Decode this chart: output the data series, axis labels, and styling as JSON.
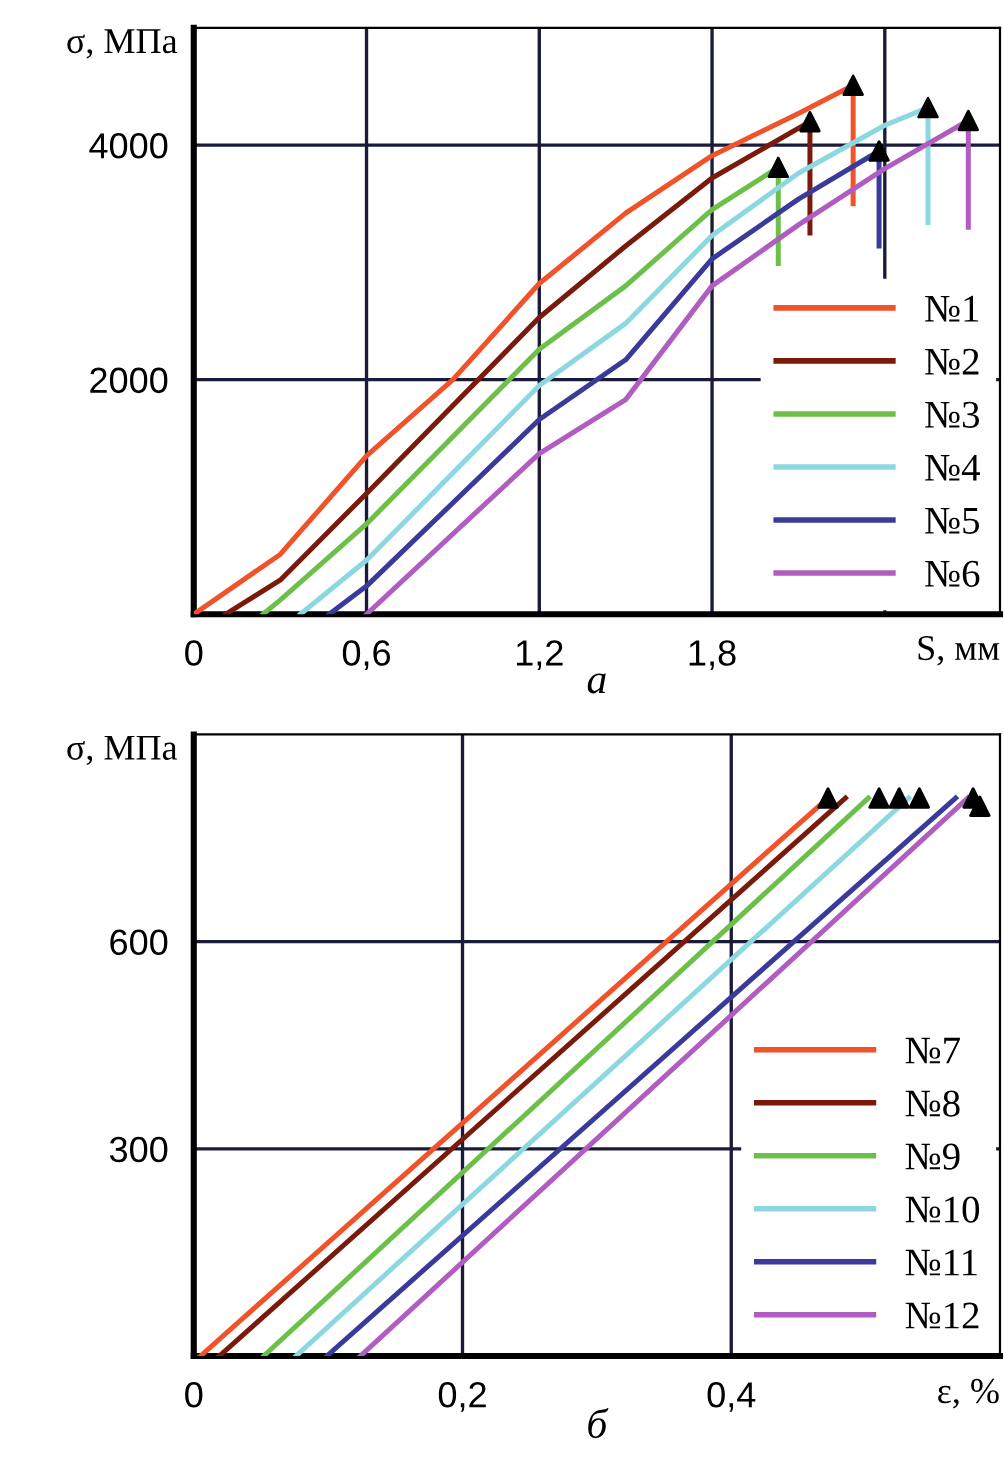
{
  "chart_data": [
    {
      "type": "line",
      "xlabel": "S, мм",
      "ylabel": "σ, МПа",
      "annotations": [
        "а"
      ],
      "xlim": [
        0,
        2.8
      ],
      "ylim": [
        0,
        5000
      ],
      "xticks": [
        0,
        {
          "value": 0.6,
          "label": "0,6"
        },
        {
          "value": 1.2,
          "label": "1,2"
        },
        {
          "value": 1.8,
          "label": "1,8"
        },
        {
          "value": 2.4,
          "label": null
        }
      ],
      "yticks": [
        {
          "value": 0,
          "label": null
        },
        2000,
        4000
      ],
      "grid": true,
      "legend": "bottom right",
      "line_style": "solid",
      "series": [
        {
          "name": "№1",
          "color": "#f0522a",
          "marker": "none",
          "x": [
            0,
            0.3,
            0.6,
            0.9,
            1.2,
            1.5,
            1.8,
            2.1,
            2.29,
            2.29
          ],
          "values": [
            0,
            510,
            1350,
            2000,
            2820,
            3420,
            3910,
            4270,
            4510,
            3500
          ]
        },
        {
          "name": "№2",
          "color": "#7a1a0a",
          "marker": "none",
          "x": [
            0.11,
            0.3,
            0.6,
            1.2,
            1.5,
            1.8,
            2.14,
            2.14
          ],
          "values": [
            0,
            290,
            1030,
            2530,
            3140,
            3720,
            4200,
            3250
          ]
        },
        {
          "name": "№3",
          "color": "#6cc04a",
          "marker": "none",
          "x": [
            0.24,
            0.3,
            0.6,
            1.2,
            1.5,
            1.8,
            2.03,
            2.03
          ],
          "values": [
            0,
            120,
            770,
            2260,
            2800,
            3450,
            3810,
            2990
          ]
        },
        {
          "name": "№4",
          "color": "#8dd8e0",
          "marker": "none",
          "x": [
            0.37,
            0.6,
            1.2,
            1.5,
            1.8,
            2.1,
            2.4,
            2.55,
            2.55
          ],
          "values": [
            0,
            460,
            1950,
            2480,
            3230,
            3760,
            4170,
            4320,
            3340
          ]
        },
        {
          "name": "№5",
          "color": "#3a3a9a",
          "marker": "none",
          "x": [
            0.47,
            0.6,
            1.2,
            1.5,
            1.8,
            2.1,
            2.38,
            2.38
          ],
          "values": [
            0,
            240,
            1660,
            2170,
            3030,
            3540,
            3950,
            3140
          ]
        },
        {
          "name": "№6",
          "color": "#b05cc0",
          "marker": "none",
          "x": [
            0.6,
            1.2,
            1.5,
            1.8,
            2.1,
            2.4,
            2.69,
            2.69
          ],
          "values": [
            0,
            1370,
            1830,
            2800,
            3320,
            3800,
            4210,
            3300
          ]
        },
        {
          "type": "scatter",
          "color": "#000000",
          "marker": "triangle",
          "x": [
            2.29,
            2.14,
            2.03,
            2.55,
            2.38,
            2.69
          ],
          "values": [
            4510,
            4200,
            3810,
            4320,
            3950,
            4210
          ]
        }
      ]
    },
    {
      "type": "line",
      "xlabel": "ε, %",
      "ylabel": "σ, МПа",
      "annotations": [
        "б"
      ],
      "xlim": [
        0,
        0.6
      ],
      "ylim": [
        0,
        900
      ],
      "xticks": [
        0,
        {
          "value": 0.2,
          "label": "0,2"
        },
        {
          "value": 0.4,
          "label": "0,4"
        }
      ],
      "yticks": [
        {
          "value": 0,
          "label": null
        },
        300,
        600
      ],
      "grid": true,
      "legend": "bottom right",
      "line_style": "solid",
      "series": [
        {
          "name": "№7",
          "color": "#f0522a",
          "marker": "none",
          "x": [
            0.005,
            0.472
          ],
          "values": [
            0,
            808
          ]
        },
        {
          "name": "№8",
          "color": "#7a1a0a",
          "marker": "none",
          "x": [
            0.019,
            0.485
          ],
          "values": [
            0,
            808
          ]
        },
        {
          "name": "№9",
          "color": "#6cc04a",
          "marker": "none",
          "x": [
            0.052,
            0.502
          ],
          "values": [
            0,
            808
          ]
        },
        {
          "name": "№10",
          "color": "#8dd8e0",
          "marker": "none",
          "x": [
            0.076,
            0.532
          ],
          "values": [
            0,
            808
          ]
        },
        {
          "name": "№11",
          "color": "#3a3a9a",
          "marker": "none",
          "x": [
            0.099,
            0.567
          ],
          "values": [
            0,
            808
          ]
        },
        {
          "name": "№12",
          "color": "#b05cc0",
          "marker": "none",
          "x": [
            0.124,
            0.576
          ],
          "values": [
            0,
            808
          ]
        },
        {
          "type": "scatter",
          "color": "#000000",
          "marker": "triangle",
          "x": [
            0.472,
            0.51,
            0.525,
            0.54,
            0.58,
            0.585
          ],
          "values": [
            808,
            808,
            808,
            808,
            808,
            796
          ]
        }
      ]
    }
  ]
}
